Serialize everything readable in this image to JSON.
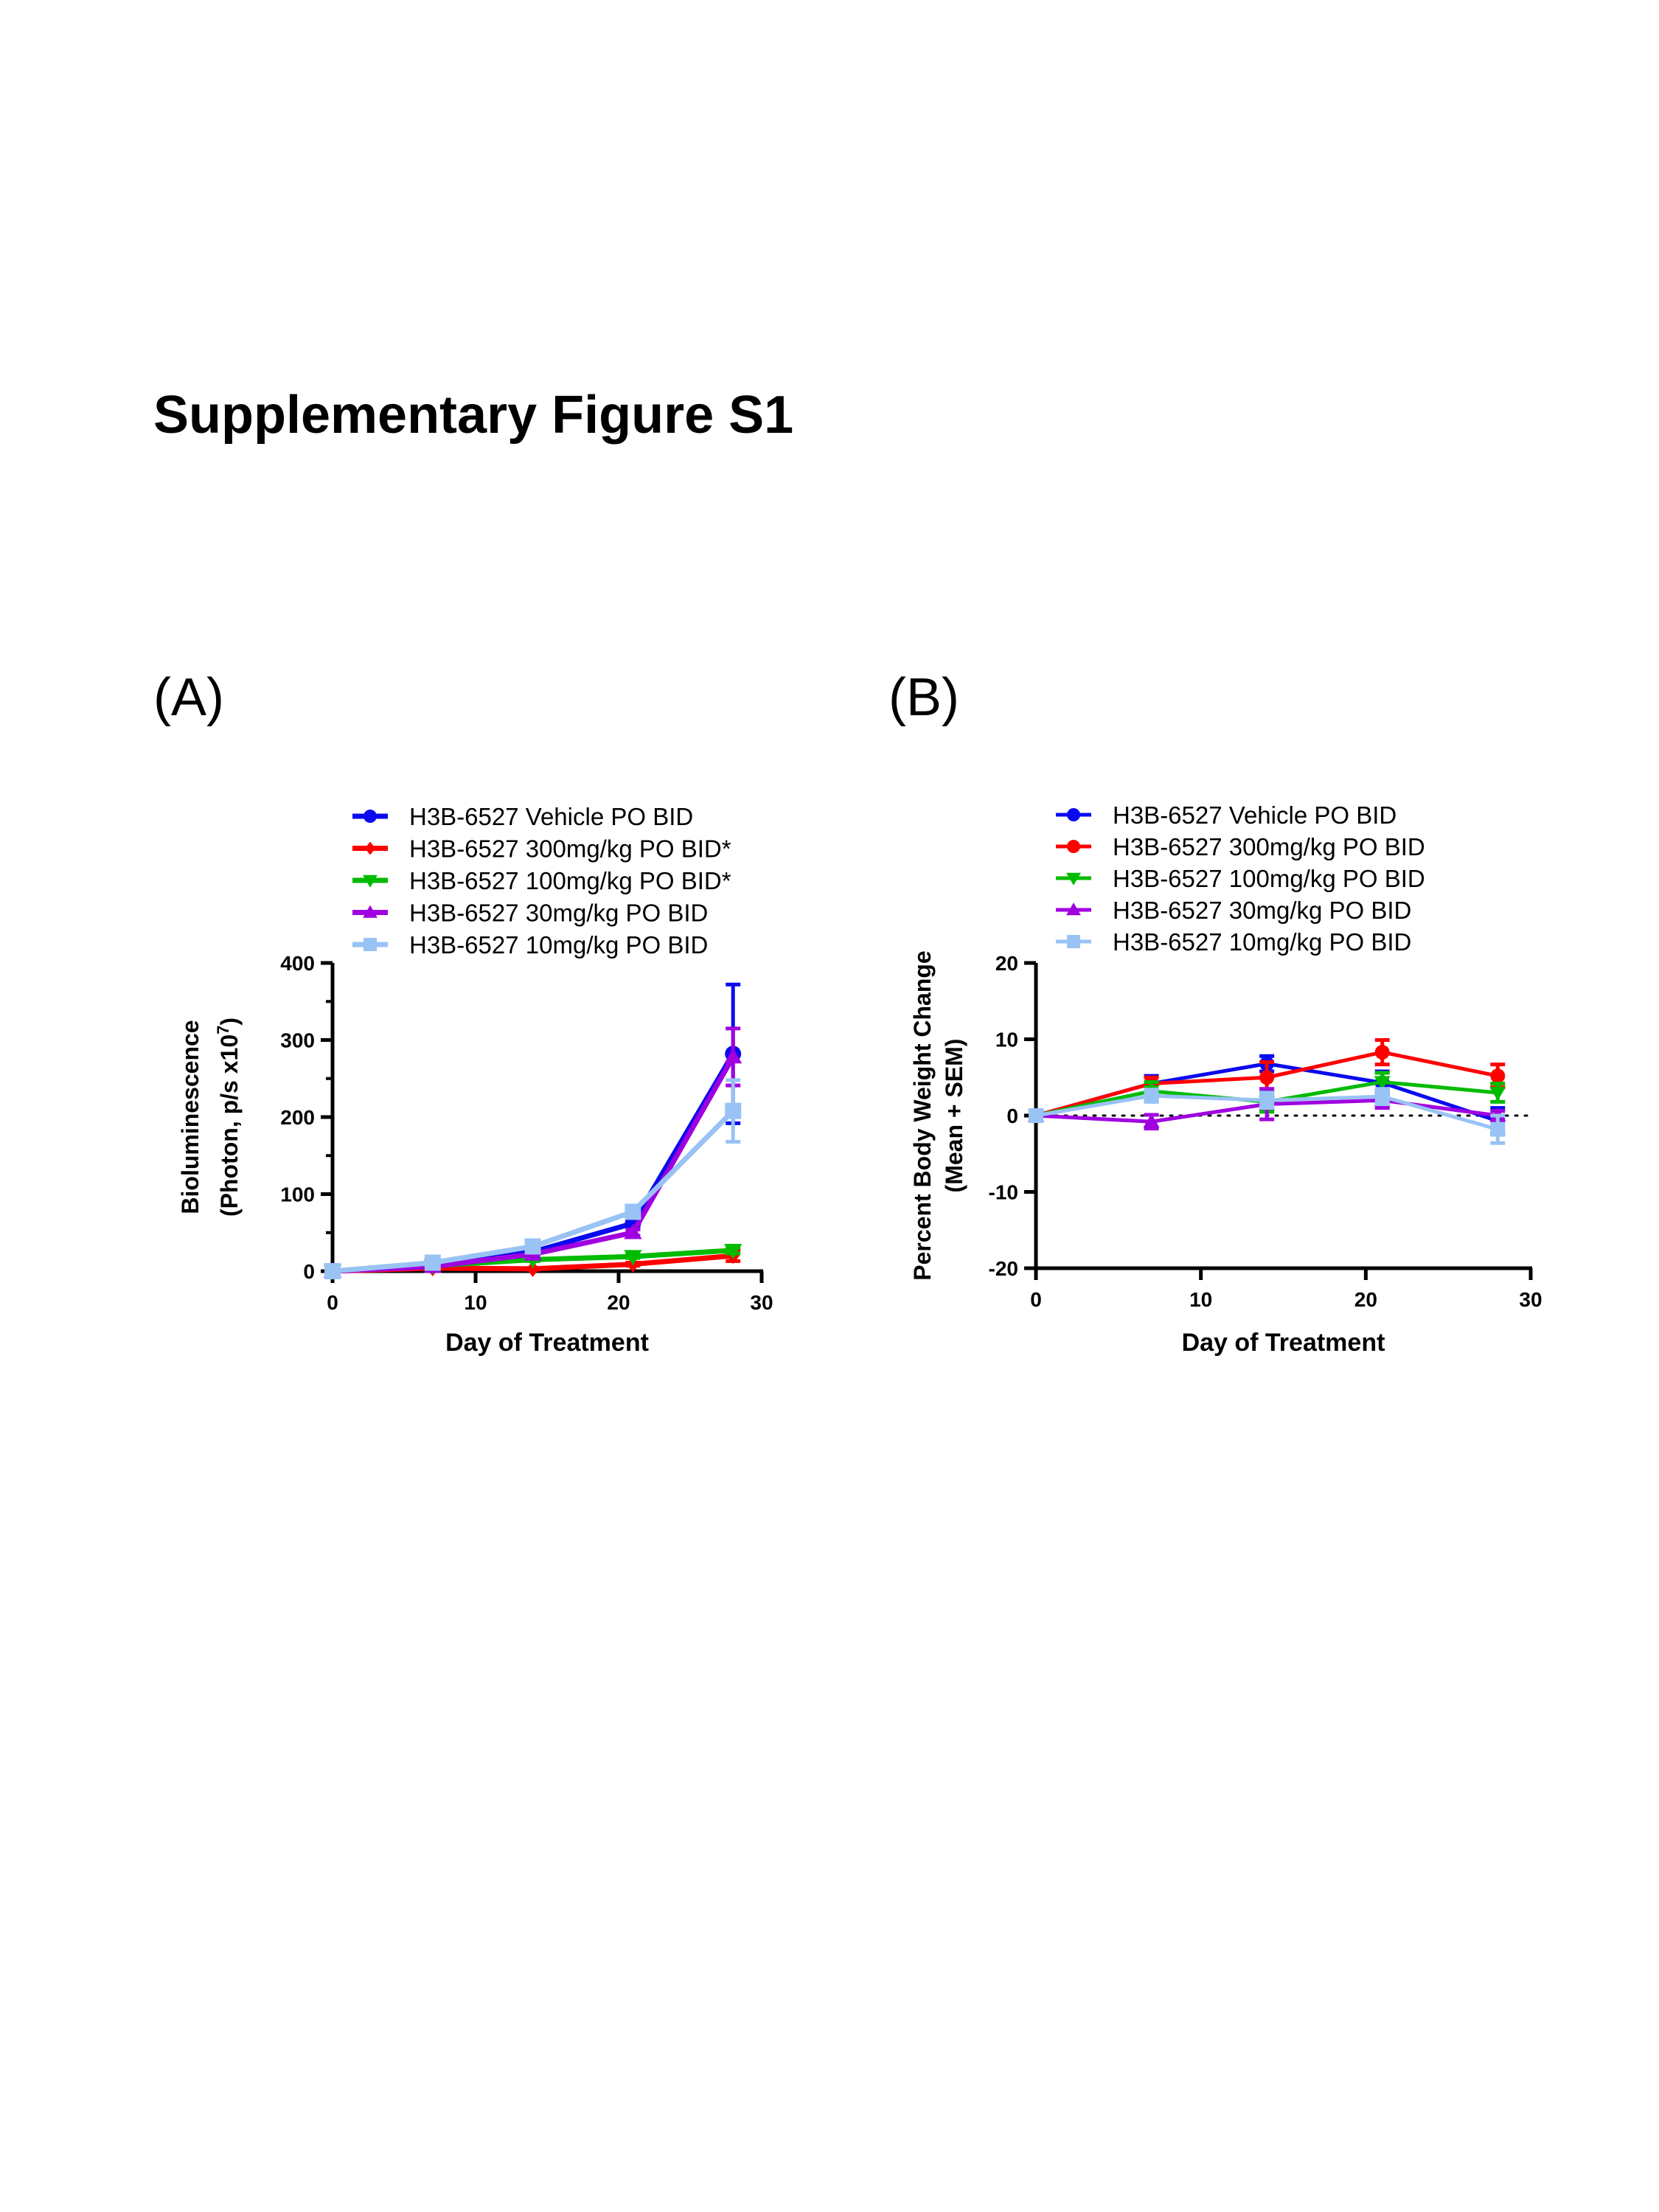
{
  "title": "Supplementary Figure S1",
  "panels": {
    "a": "(A)",
    "b": "(B)"
  },
  "chart_data": [
    {
      "type": "line",
      "panel": "(A)",
      "xlabel": "Day of Treatment",
      "ylabel": [
        "Bioluminescence",
        "(Photon, p/s x10",
        "7",
        ")"
      ],
      "xlim": [
        0,
        30
      ],
      "ylim": [
        0,
        400
      ],
      "xticks": [
        0,
        10,
        20,
        30
      ],
      "yticks": [
        0,
        100,
        200,
        300,
        400
      ],
      "yminor": [
        50,
        150,
        250,
        350
      ],
      "x": [
        0,
        7,
        14,
        21,
        28
      ],
      "legend_position": "top",
      "series": [
        {
          "name": "H3B-6527 Vehicle PO BID",
          "color": "#0a0aee",
          "marker": "circle",
          "values": [
            0,
            8,
            25,
            62,
            282
          ],
          "sem": [
            1,
            2,
            4,
            6,
            90
          ]
        },
        {
          "name": "H3B-6527 300mg/kg PO BID*",
          "color": "#ff0000",
          "marker": "diamond",
          "values": [
            0,
            4,
            3,
            9,
            20
          ],
          "sem": [
            0.5,
            1,
            1,
            2,
            7
          ]
        },
        {
          "name": "H3B-6527 100mg/kg PO BID*",
          "color": "#00bb00",
          "marker": "triangle-down",
          "values": [
            0,
            7,
            15,
            19,
            27
          ],
          "sem": [
            0.5,
            1,
            2,
            2,
            4
          ]
        },
        {
          "name": "H3B-6527 30mg/kg PO BID",
          "color": "#a000e0",
          "marker": "triangle-up",
          "values": [
            0,
            6,
            22,
            50,
            278
          ],
          "sem": [
            0.5,
            1,
            3,
            4,
            37
          ]
        },
        {
          "name": "H3B-6527 10mg/kg PO BID",
          "color": "#99c2f5",
          "marker": "square",
          "values": [
            0,
            11,
            32,
            77,
            208
          ],
          "sem": [
            0.5,
            2,
            4,
            5,
            40
          ]
        }
      ]
    },
    {
      "type": "line",
      "panel": "(B)",
      "xlabel": "Day of Treatment",
      "ylabel": [
        "Percent Body Weight Change",
        "(Mean + SEM)"
      ],
      "xlim": [
        0,
        30
      ],
      "ylim": [
        -20,
        20
      ],
      "xticks": [
        0,
        10,
        20,
        30
      ],
      "yticks": [
        -20,
        -10,
        0,
        10,
        20
      ],
      "reference_line": {
        "y": 0,
        "style": "dotted"
      },
      "x": [
        0,
        7,
        14,
        21,
        28
      ],
      "legend_position": "top",
      "series": [
        {
          "name": "H3B-6527 Vehicle PO BID",
          "color": "#0a0aee",
          "marker": "circle",
          "values": [
            0,
            4.2,
            6.8,
            4.3,
            -0.7
          ],
          "sem": [
            0.3,
            1.0,
            1.0,
            1.5,
            1.7
          ]
        },
        {
          "name": "H3B-6527 300mg/kg PO BID",
          "color": "#ff0000",
          "marker": "circle",
          "values": [
            0,
            4.2,
            5.0,
            8.3,
            5.2
          ],
          "sem": [
            0.3,
            0.8,
            2.0,
            1.6,
            1.5
          ]
        },
        {
          "name": "H3B-6527 100mg/kg PO BID",
          "color": "#00bb00",
          "marker": "triangle-down",
          "values": [
            0,
            3.2,
            1.8,
            4.4,
            3.0
          ],
          "sem": [
            0.3,
            1.2,
            1.3,
            1.2,
            1.2
          ]
        },
        {
          "name": "H3B-6527 30mg/kg PO BID",
          "color": "#a000e0",
          "marker": "triangle-up",
          "values": [
            0,
            -0.8,
            1.5,
            2.0,
            0.0
          ],
          "sem": [
            0.3,
            0.9,
            2.0,
            1.0,
            0.6
          ]
        },
        {
          "name": "H3B-6527 10mg/kg PO BID",
          "color": "#99c2f5",
          "marker": "square",
          "values": [
            0,
            2.6,
            2.0,
            2.5,
            -1.8
          ],
          "sem": [
            0.3,
            0.8,
            1.0,
            1.0,
            1.8
          ]
        }
      ]
    }
  ]
}
